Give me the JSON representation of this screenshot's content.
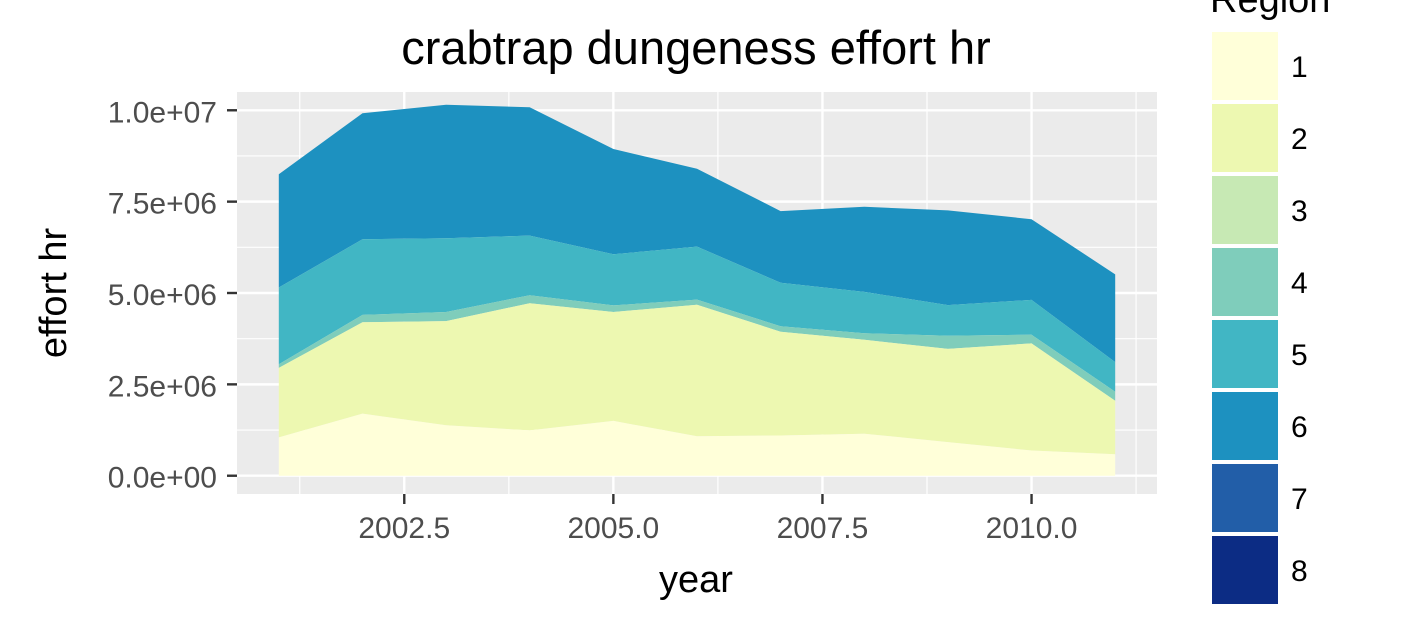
{
  "chart_data": {
    "type": "area",
    "stacked": true,
    "title": "crabtrap dungeness effort hr",
    "xlabel": "year",
    "ylabel": "effort hr",
    "xlim": [
      2000.5,
      2011.5
    ],
    "ylim": [
      -500000,
      10500000
    ],
    "x_ticks": [
      2002.5,
      2005.0,
      2007.5,
      2010.0
    ],
    "x_tick_labels": [
      "2002.5",
      "2005.0",
      "2007.5",
      "2010.0"
    ],
    "y_ticks": [
      0,
      2500000,
      5000000,
      7500000,
      10000000
    ],
    "y_tick_labels": [
      "0.0e+00",
      "2.5e+06",
      "5.0e+06",
      "7.5e+06",
      "1.0e+07"
    ],
    "grid": true,
    "legend_title": "Region",
    "legend_position": "right",
    "x": [
      2001,
      2002,
      2003,
      2004,
      2005,
      2006,
      2007,
      2008,
      2009,
      2010,
      2011
    ],
    "series": [
      {
        "name": "1",
        "color": "#FFFFD9",
        "values": [
          1050000,
          1700000,
          1380000,
          1240000,
          1500000,
          1080000,
          1100000,
          1150000,
          920000,
          690000,
          590000
        ]
      },
      {
        "name": "2",
        "color": "#EDF8B1",
        "values": [
          1900000,
          2500000,
          2850000,
          3480000,
          2980000,
          3600000,
          2840000,
          2570000,
          2550000,
          2930000,
          1460000
        ]
      },
      {
        "name": "3",
        "color": "#C7E9B4",
        "values": [
          0,
          0,
          0,
          0,
          0,
          0,
          0,
          0,
          0,
          0,
          0
        ]
      },
      {
        "name": "4",
        "color": "#7FCDBB",
        "values": [
          100000,
          200000,
          250000,
          220000,
          180000,
          140000,
          150000,
          180000,
          360000,
          240000,
          250000
        ]
      },
      {
        "name": "5",
        "color": "#41B6C4",
        "values": [
          2100000,
          2070000,
          2020000,
          1630000,
          1400000,
          1450000,
          1190000,
          1130000,
          840000,
          950000,
          810000
        ]
      },
      {
        "name": "6",
        "color": "#1D91C0",
        "values": [
          3100000,
          3450000,
          3650000,
          3510000,
          2880000,
          2130000,
          1960000,
          2330000,
          2590000,
          2210000,
          2400000
        ]
      },
      {
        "name": "7",
        "color": "#225EA8",
        "values": [
          0,
          0,
          0,
          0,
          0,
          0,
          0,
          0,
          0,
          0,
          0
        ]
      },
      {
        "name": "8",
        "color": "#0C2C84",
        "values": [
          0,
          0,
          0,
          0,
          0,
          0,
          0,
          0,
          0,
          0,
          0
        ]
      }
    ]
  },
  "colors": {
    "panel_background": "#EBEBEB",
    "gridline": "#FFFFFF",
    "axis_text": "#4D4D4D",
    "text": "#000000"
  }
}
